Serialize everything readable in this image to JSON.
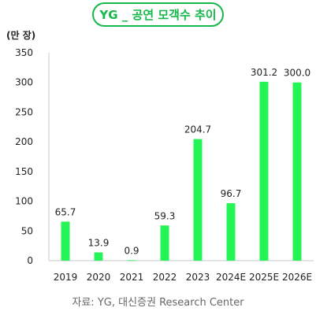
{
  "chart_data": {
    "type": "bar",
    "title": "YG _ 공연 모객수 추이",
    "unit_label": "(만 장)",
    "categories": [
      "2019",
      "2020",
      "2021",
      "2022",
      "2023",
      "2024E",
      "2025E",
      "2026E"
    ],
    "values": [
      65.7,
      13.9,
      0.9,
      59.3,
      204.7,
      96.7,
      301.2,
      300.0
    ],
    "value_labels": [
      "65.7",
      "13.9",
      "0.9",
      "59.3",
      "204.7",
      "96.7",
      "301.2",
      "300.0"
    ],
    "yticks": [
      "0",
      "50",
      "100",
      "150",
      "200",
      "250",
      "300",
      "350"
    ],
    "ylim": [
      0,
      350
    ],
    "xlabel": "",
    "ylabel": "",
    "grid": false,
    "bar_color": "#25f456",
    "source": "자료: YG, 대신증권 Research Center"
  },
  "colors": {
    "accent": "#15b84a",
    "bar": "#25f456",
    "axis": "#c8c8c8",
    "text": "#222222",
    "source_text": "#666666"
  }
}
